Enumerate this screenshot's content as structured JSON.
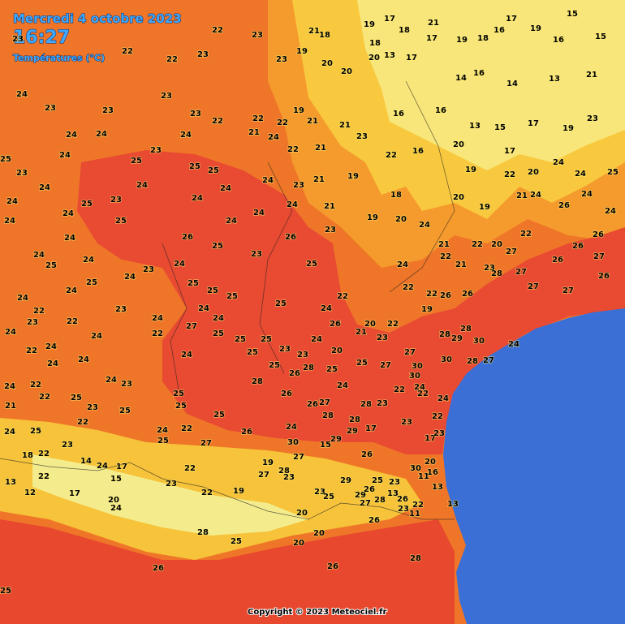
{
  "header": {
    "date": "Mercredi 4 octobre 2023",
    "time": "16:27",
    "subtitle": "Températures (°C)"
  },
  "stations": [
    23,
    22,
    22,
    23,
    22,
    23,
    23,
    19,
    21,
    18,
    19,
    17,
    18,
    18,
    21,
    17,
    19,
    18,
    16,
    17,
    19,
    16,
    15,
    15,
    20,
    20,
    20,
    13,
    17,
    14,
    16,
    14,
    13,
    21,
    24,
    23,
    23,
    23,
    23,
    22,
    22,
    22,
    19,
    21,
    21,
    16,
    16,
    13,
    15,
    17,
    19,
    23,
    24,
    24,
    23,
    24,
    21,
    24,
    22,
    21,
    23,
    16,
    20,
    17,
    25,
    23,
    24,
    25,
    25,
    25,
    24,
    23,
    21,
    19,
    22,
    19,
    22,
    20,
    24,
    24,
    25,
    24,
    24,
    25,
    23,
    24,
    24,
    24,
    24,
    24,
    21,
    18,
    20,
    19,
    21,
    24,
    26,
    24,
    24,
    24,
    24,
    25,
    26,
    25,
    24,
    23,
    19,
    20,
    24,
    21,
    22,
    20,
    22,
    26,
    26,
    24,
    24,
    25,
    24,
    24,
    23,
    24,
    23,
    26,
    25,
    24,
    22,
    21,
    23,
    27,
    26,
    27,
    24,
    24,
    25,
    25,
    25,
    25,
    24,
    25,
    22,
    24,
    22,
    22,
    26,
    26,
    28,
    27,
    27,
    27,
    26,
    22,
    23,
    24,
    24,
    26,
    21,
    20,
    22,
    19,
    28,
    29,
    30,
    24,
    24,
    23,
    22,
    24,
    22,
    27,
    25,
    25,
    25,
    23,
    24,
    23,
    28,
    22,
    24,
    24,
    24,
    25,
    23,
    20,
    25,
    27,
    27,
    30,
    28,
    27,
    24,
    25,
    26,
    25,
    30,
    30,
    24,
    22,
    24,
    23,
    28,
    28,
    24,
    22,
    24,
    21,
    22,
    25,
    23,
    25,
    25,
    25,
    25,
    26,
    26,
    27,
    28,
    28,
    23,
    22,
    24,
    22,
    24,
    22,
    26,
    24,
    28,
    29,
    17,
    23,
    22,
    24,
    25,
    25,
    27,
    30,
    29,
    15,
    17,
    23,
    23,
    18,
    22,
    14,
    24,
    17,
    22,
    19,
    27,
    28,
    27,
    26,
    30,
    20,
    16,
    11,
    22,
    13,
    12,
    17,
    15,
    23,
    22,
    19,
    23,
    23,
    25,
    29,
    29,
    26,
    25,
    23,
    13,
    13,
    20,
    24,
    27,
    28,
    26,
    23,
    22,
    11,
    13,
    20,
    28,
    20,
    26,
    25,
    20,
    26,
    26,
    28,
    25
  ],
  "copyright": "Copyright © 2023 Meteociel.fr"
}
